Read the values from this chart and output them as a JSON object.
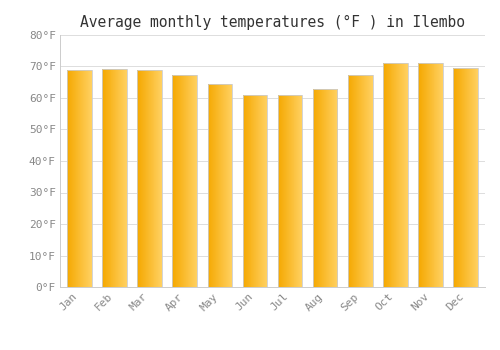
{
  "title": "Average monthly temperatures (°F ) in Ilembo",
  "months": [
    "Jan",
    "Feb",
    "Mar",
    "Apr",
    "May",
    "Jun",
    "Jul",
    "Aug",
    "Sep",
    "Oct",
    "Nov",
    "Dec"
  ],
  "values": [
    69.0,
    69.2,
    68.8,
    67.3,
    64.5,
    61.0,
    61.0,
    63.0,
    67.3,
    71.0,
    71.2,
    69.5
  ],
  "bar_color_left": "#F5A800",
  "bar_color_right": "#FFD060",
  "bar_edge_color": "#CCCCCC",
  "background_color": "#FFFFFF",
  "grid_color": "#DDDDDD",
  "text_color": "#888888",
  "title_color": "#333333",
  "ylim": [
    0,
    80
  ],
  "yticks": [
    0,
    10,
    20,
    30,
    40,
    50,
    60,
    70,
    80
  ],
  "ytick_labels": [
    "0°F",
    "10°F",
    "20°F",
    "30°F",
    "40°F",
    "50°F",
    "60°F",
    "70°F",
    "80°F"
  ],
  "title_fontsize": 10.5,
  "tick_fontsize": 8,
  "bar_width": 0.7,
  "n_gradient_steps": 50
}
